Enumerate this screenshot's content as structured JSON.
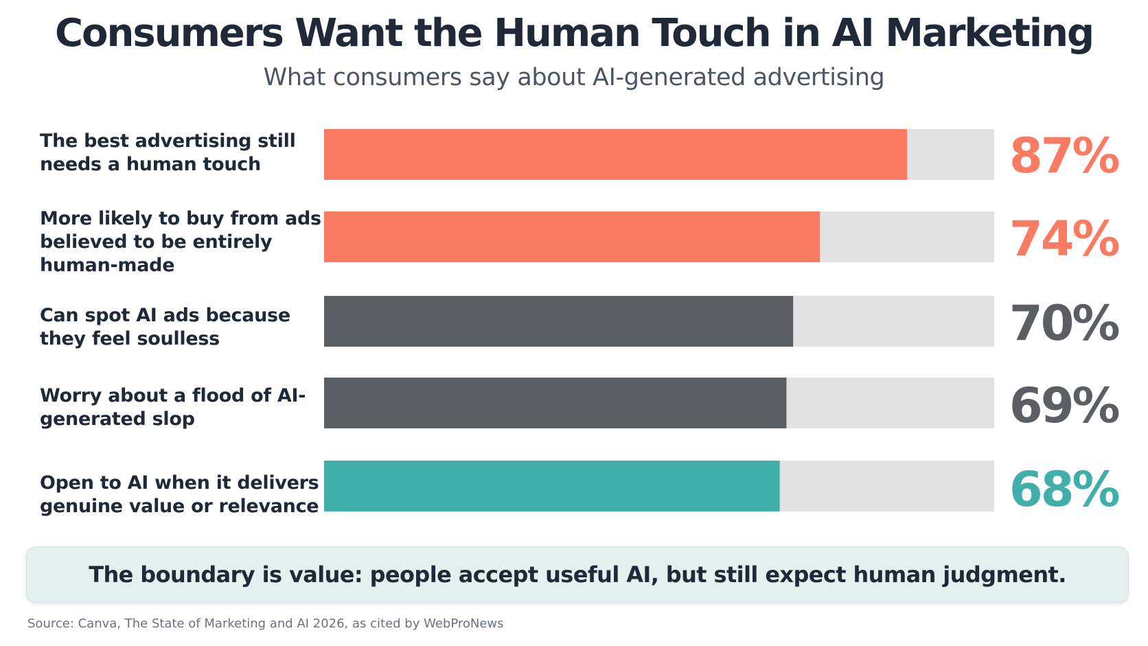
{
  "chart_data": {
    "type": "bar",
    "orientation": "horizontal",
    "title": "Consumers Want the Human Touch in AI Marketing",
    "subtitle": "What consumers say about AI-generated advertising",
    "categories": [
      "The best advertising still needs a human touch",
      "More likely to buy from ads believed to be entirely human-made",
      "Can spot AI ads because they feel soulless",
      "Worry about a flood of AI-generated slop",
      "Open to AI when it delivers genuine value or relevance"
    ],
    "values": [
      87,
      74,
      70,
      69,
      68
    ],
    "value_labels": [
      "87%",
      "74%",
      "70%",
      "69%",
      "68%"
    ],
    "colors": [
      "#f97b62",
      "#f97b62",
      "#5b5f63",
      "#5b5f63",
      "#41afa9"
    ],
    "track_color": "#e2e2e2",
    "xlim": [
      0,
      100
    ],
    "grid": false,
    "legend": "none"
  },
  "callout": "The boundary is value: people accept useful AI, but still expect human judgment.",
  "source": "Source: Canva, The State of Marketing and AI 2026, as cited by WebProNews"
}
